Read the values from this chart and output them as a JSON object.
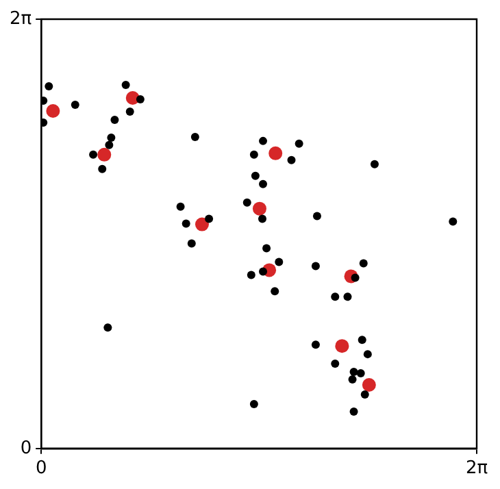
{
  "chart_data": {
    "type": "scatter",
    "xlim": [
      0,
      6.283
    ],
    "ylim": [
      0,
      6.283
    ],
    "xticks": [
      0,
      {
        "value": 6.283,
        "label": "2π"
      }
    ],
    "yticks": [
      0,
      {
        "value": 6.283,
        "label": "2π"
      }
    ],
    "legend": false,
    "marker": "circle",
    "series": [
      {
        "color": "#000000",
        "x": [
          0.11,
          0.03,
          0.03,
          0.49,
          1.22,
          1.43,
          1.28,
          1.06,
          1.01,
          0.98,
          0.75,
          0.88,
          2.22,
          2.01,
          2.09,
          2.42,
          2.17,
          3.2,
          3.07,
          3.09,
          3.2,
          2.97,
          3.19,
          3.25,
          3.72,
          3.61,
          4.81,
          3.98,
          5.94,
          3.43,
          3.03,
          3.2,
          3.37,
          0.96,
          3.07,
          3.96,
          4.65,
          4.53,
          4.24,
          4.42,
          3.96,
          4.63,
          4.71,
          4.24,
          4.51,
          4.61,
          4.49,
          4.67,
          4.51
        ],
        "values": [
          5.3,
          5.09,
          4.77,
          5.03,
          5.32,
          5.11,
          4.93,
          4.81,
          4.55,
          4.44,
          4.3,
          4.09,
          4.56,
          3.54,
          3.29,
          3.36,
          3.0,
          4.5,
          4.3,
          3.99,
          3.87,
          3.6,
          3.36,
          2.93,
          4.46,
          4.22,
          4.16,
          3.4,
          3.32,
          2.73,
          2.54,
          2.59,
          2.3,
          1.77,
          0.65,
          2.67,
          2.71,
          2.5,
          2.22,
          2.22,
          1.52,
          1.59,
          1.38,
          1.24,
          1.12,
          1.1,
          1.01,
          0.79,
          0.54
        ]
      },
      {
        "color": "#d62728",
        "x": [
          0.17,
          1.32,
          0.91,
          2.32,
          3.15,
          3.38,
          3.29,
          4.47,
          4.34,
          4.73
        ],
        "values": [
          4.94,
          5.13,
          4.3,
          3.28,
          3.51,
          4.32,
          2.61,
          2.52,
          1.5,
          0.93
        ]
      }
    ]
  }
}
